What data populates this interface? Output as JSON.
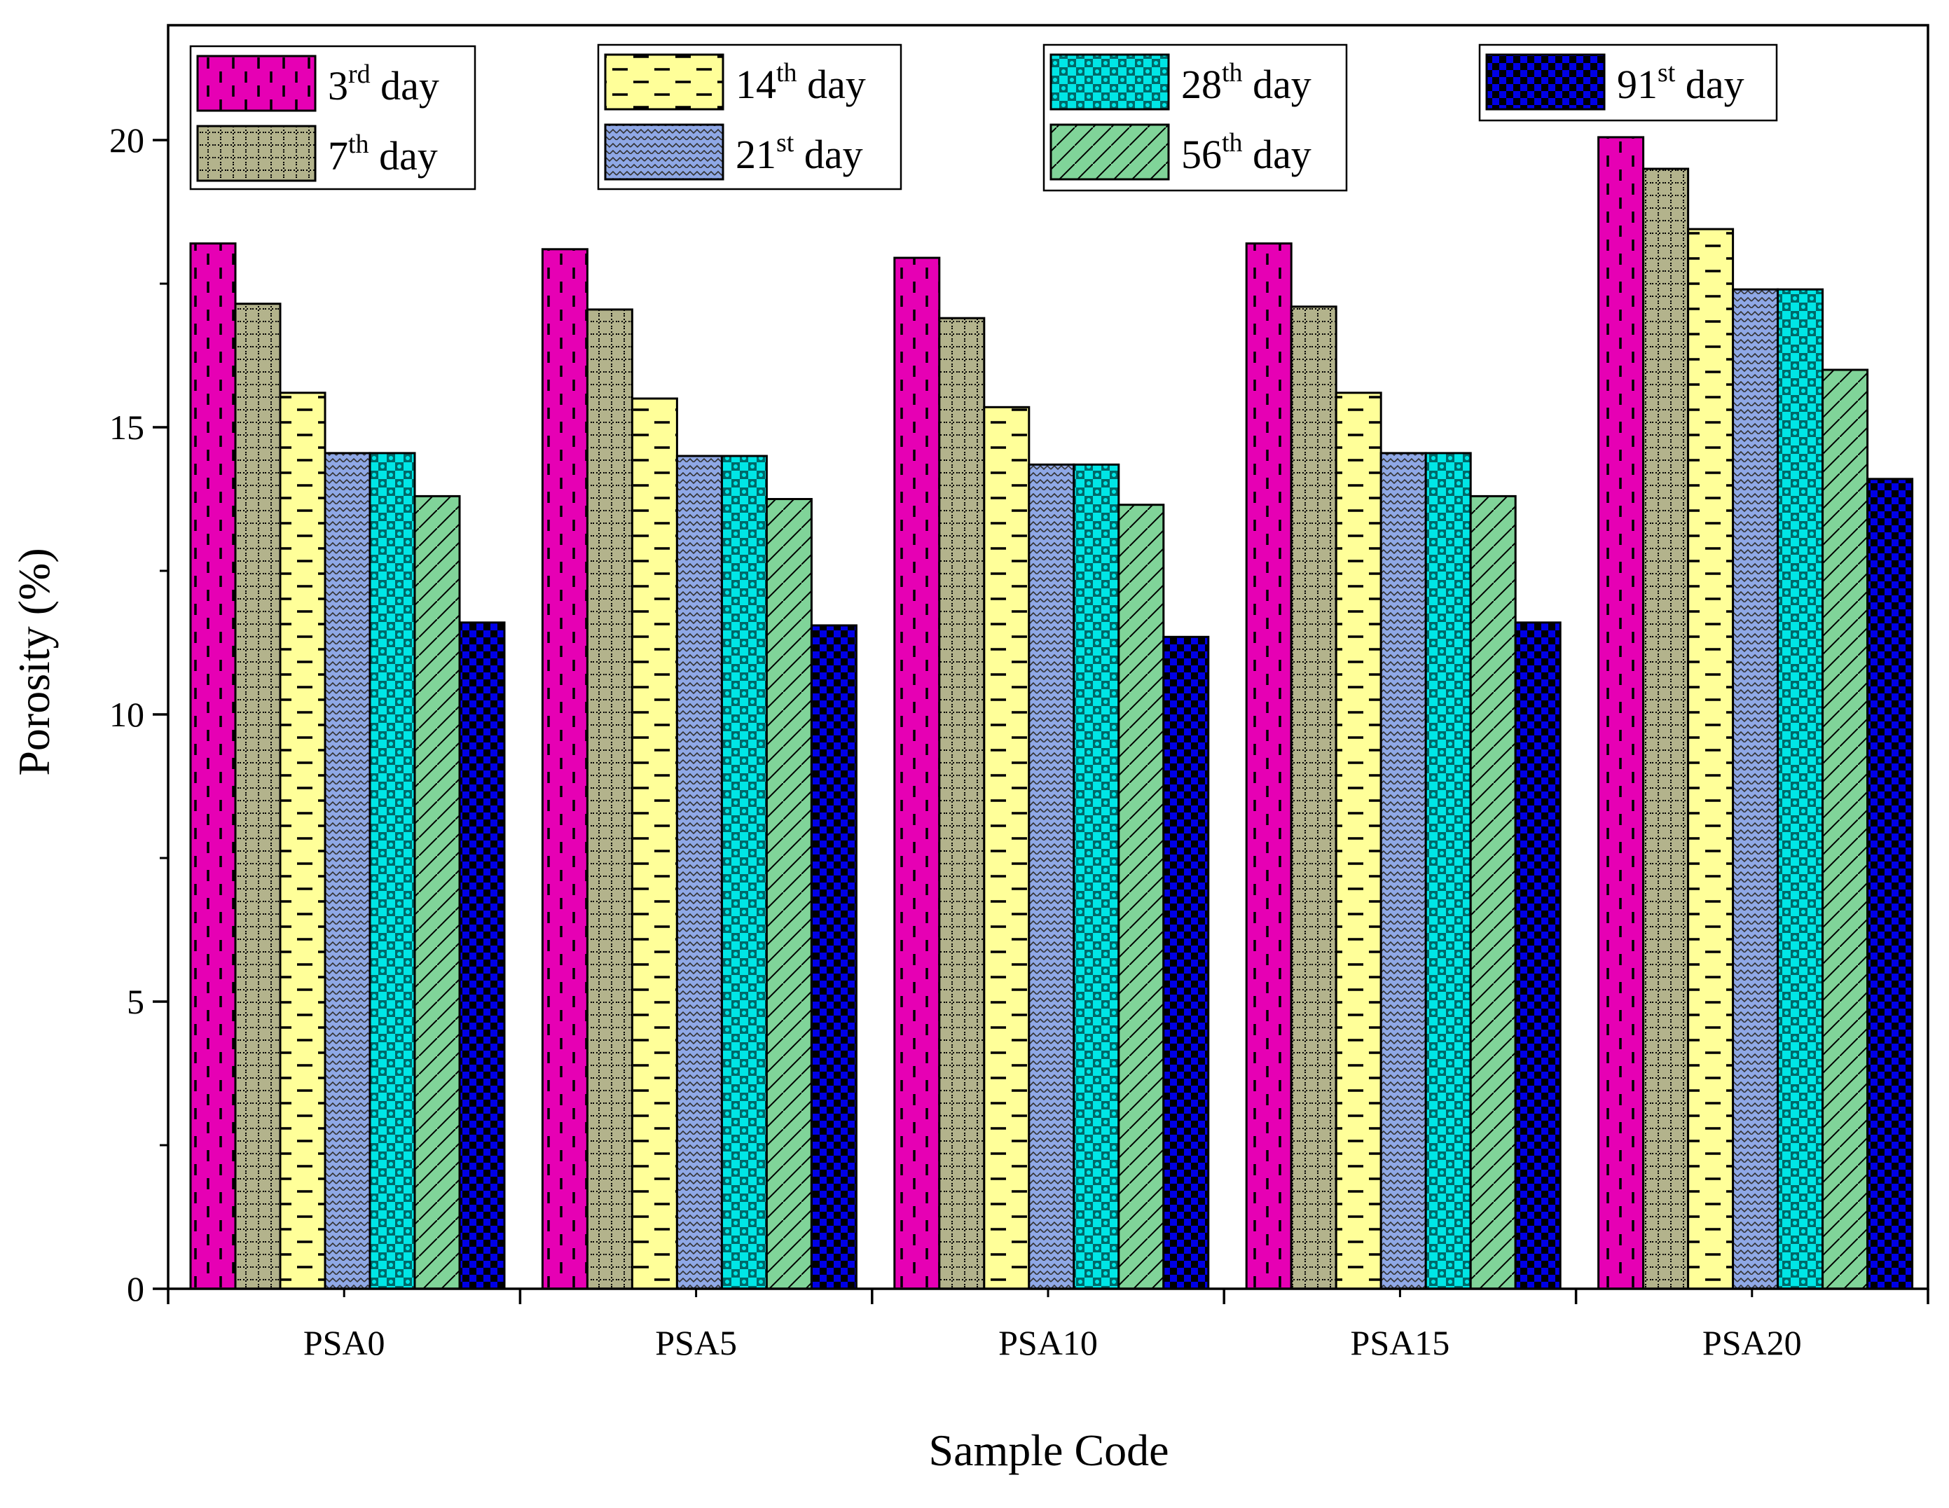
{
  "chart_data": {
    "type": "bar",
    "title": "",
    "xlabel": "Sample Code",
    "ylabel": "Porosity (%)",
    "ylim": [
      0,
      22.0
    ],
    "yticks": [
      "0",
      "5",
      "10",
      "15",
      "20"
    ],
    "categories": [
      "PSA0",
      "PSA5",
      "PSA10",
      "PSA15",
      "PSA20"
    ],
    "grid": false,
    "legend_position": "top",
    "series": [
      {
        "name": "3rd day",
        "num": "3",
        "sup": "rd",
        "suffix": " day",
        "color": "#e600b4",
        "pattern": "dashes-vertical",
        "values": [
          18.2,
          18.1,
          17.95,
          18.2,
          20.05
        ]
      },
      {
        "name": "7th day",
        "num": "7",
        "sup": "th",
        "suffix": " day",
        "color": "#b3b38c",
        "pattern": "dotted-grid",
        "values": [
          17.15,
          17.05,
          16.9,
          17.1,
          19.5
        ]
      },
      {
        "name": "14th day",
        "num": "14",
        "sup": "th",
        "suffix": " day",
        "color": "#ffff99",
        "pattern": "dashes-horizontal",
        "values": [
          15.6,
          15.5,
          15.35,
          15.6,
          18.45
        ]
      },
      {
        "name": "21st day",
        "num": "21",
        "sup": "st",
        "suffix": " day",
        "color": "#8fa8e6",
        "pattern": "waves",
        "values": [
          14.55,
          14.5,
          14.35,
          14.55,
          17.4
        ]
      },
      {
        "name": "28th day",
        "num": "28",
        "sup": "th",
        "suffix": " day",
        "color": "#00e6e6",
        "pattern": "dots-checker",
        "values": [
          14.55,
          14.5,
          14.35,
          14.55,
          17.4
        ]
      },
      {
        "name": "56th day",
        "num": "56",
        "sup": "th",
        "suffix": " day",
        "color": "#80d499",
        "pattern": "diagonal",
        "values": [
          13.8,
          13.75,
          13.65,
          13.8,
          16.0
        ]
      },
      {
        "name": "91st day",
        "num": "91",
        "sup": "st",
        "suffix": " day",
        "color": "#0000e6",
        "pattern": "checker",
        "values": [
          11.6,
          11.55,
          11.35,
          11.6,
          14.1
        ]
      }
    ]
  }
}
